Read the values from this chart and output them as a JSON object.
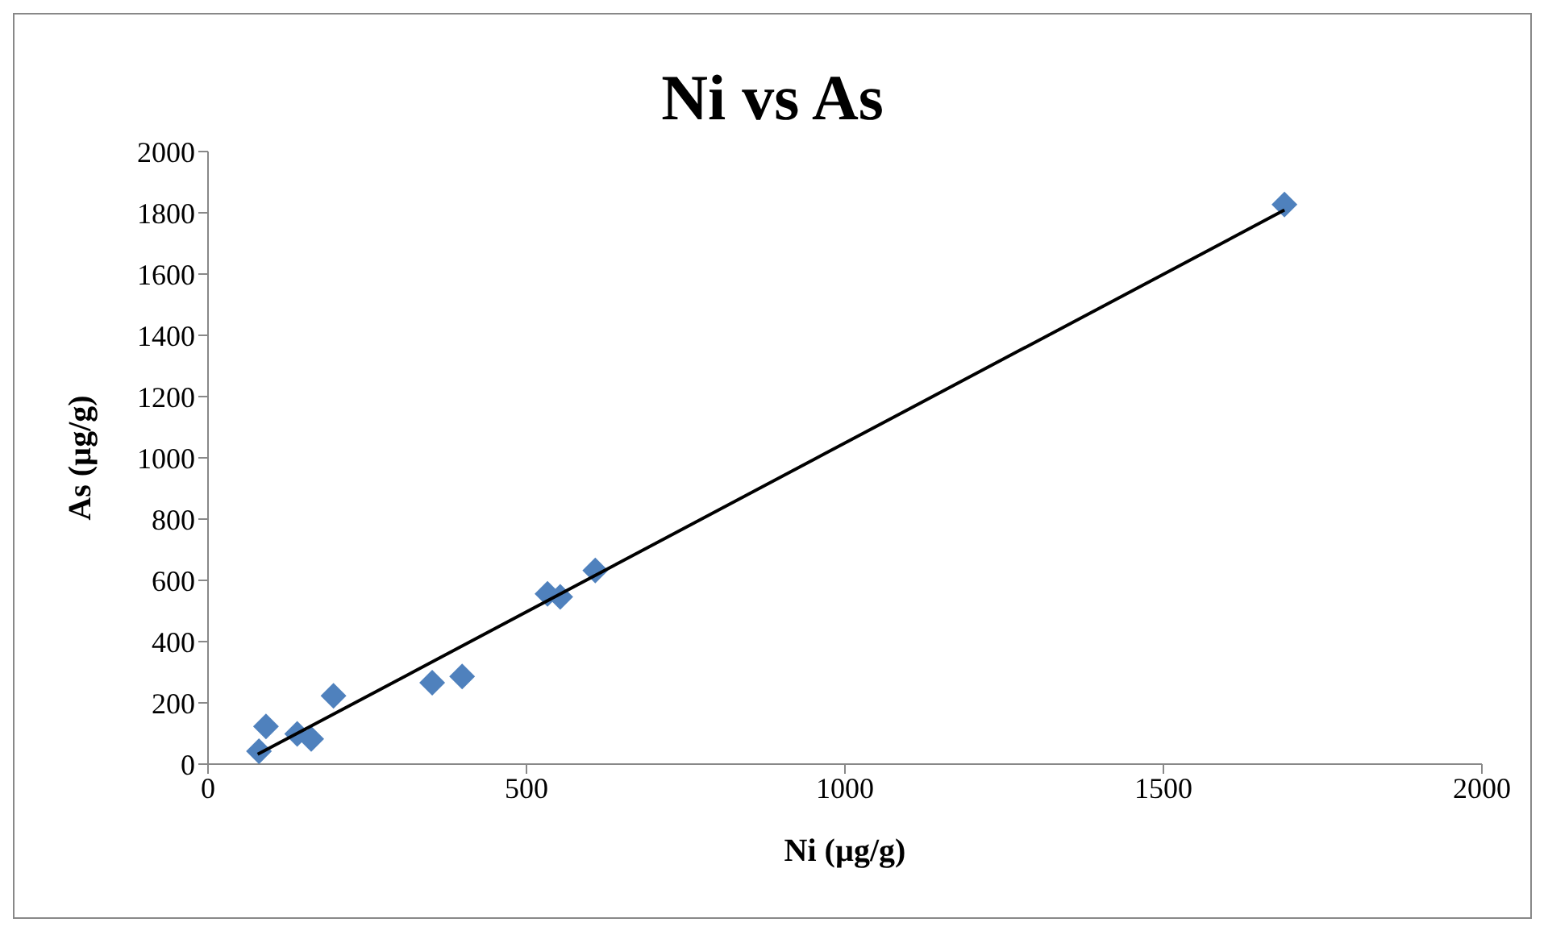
{
  "chart_data": {
    "type": "scatter",
    "title": "Ni vs As",
    "xlabel": "Ni (µg/g)",
    "ylabel": "As (µg/g)",
    "xlim": [
      0,
      2000
    ],
    "xticks": [
      0,
      500,
      1000,
      1500,
      2000
    ],
    "ylim": [
      0,
      2000
    ],
    "yticks": [
      0,
      200,
      400,
      600,
      800,
      1000,
      1200,
      1400,
      1600,
      1800,
      2000
    ],
    "grid": false,
    "legend": false,
    "marker": "diamond",
    "series": [
      {
        "type": "scatter",
        "color": "#4f81bd",
        "x": [
          80,
          91,
          140,
          162,
          197,
          352,
          399,
          533,
          553,
          608,
          1690
        ],
        "values": [
          42,
          123,
          99,
          82,
          223,
          266,
          286,
          556,
          546,
          632,
          1827
        ]
      },
      {
        "type": "line",
        "color": "#000000",
        "x": [
          78,
          1690
        ],
        "values": [
          32,
          1809
        ],
        "marker": "none",
        "line_style": "solid"
      }
    ]
  }
}
